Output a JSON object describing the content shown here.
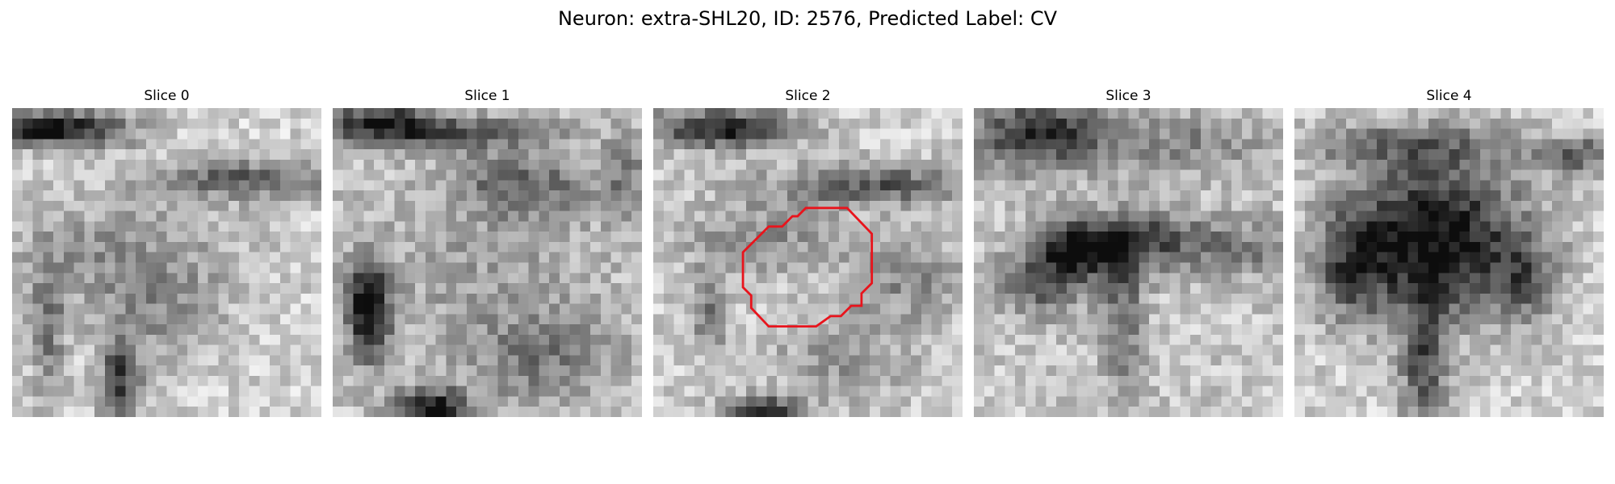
{
  "figure": {
    "title": "Neuron: extra-SHL20, ID: 2576, Predicted Label: CV"
  },
  "panels": [
    {
      "title": "Slice 0",
      "has_contour": false
    },
    {
      "title": "Slice 1",
      "has_contour": false
    },
    {
      "title": "Slice 2",
      "has_contour": true
    },
    {
      "title": "Slice 3",
      "has_contour": false
    },
    {
      "title": "Slice 4",
      "has_contour": false
    }
  ],
  "style": {
    "colormap": "grayscale",
    "contour_color": "#e8141c"
  }
}
